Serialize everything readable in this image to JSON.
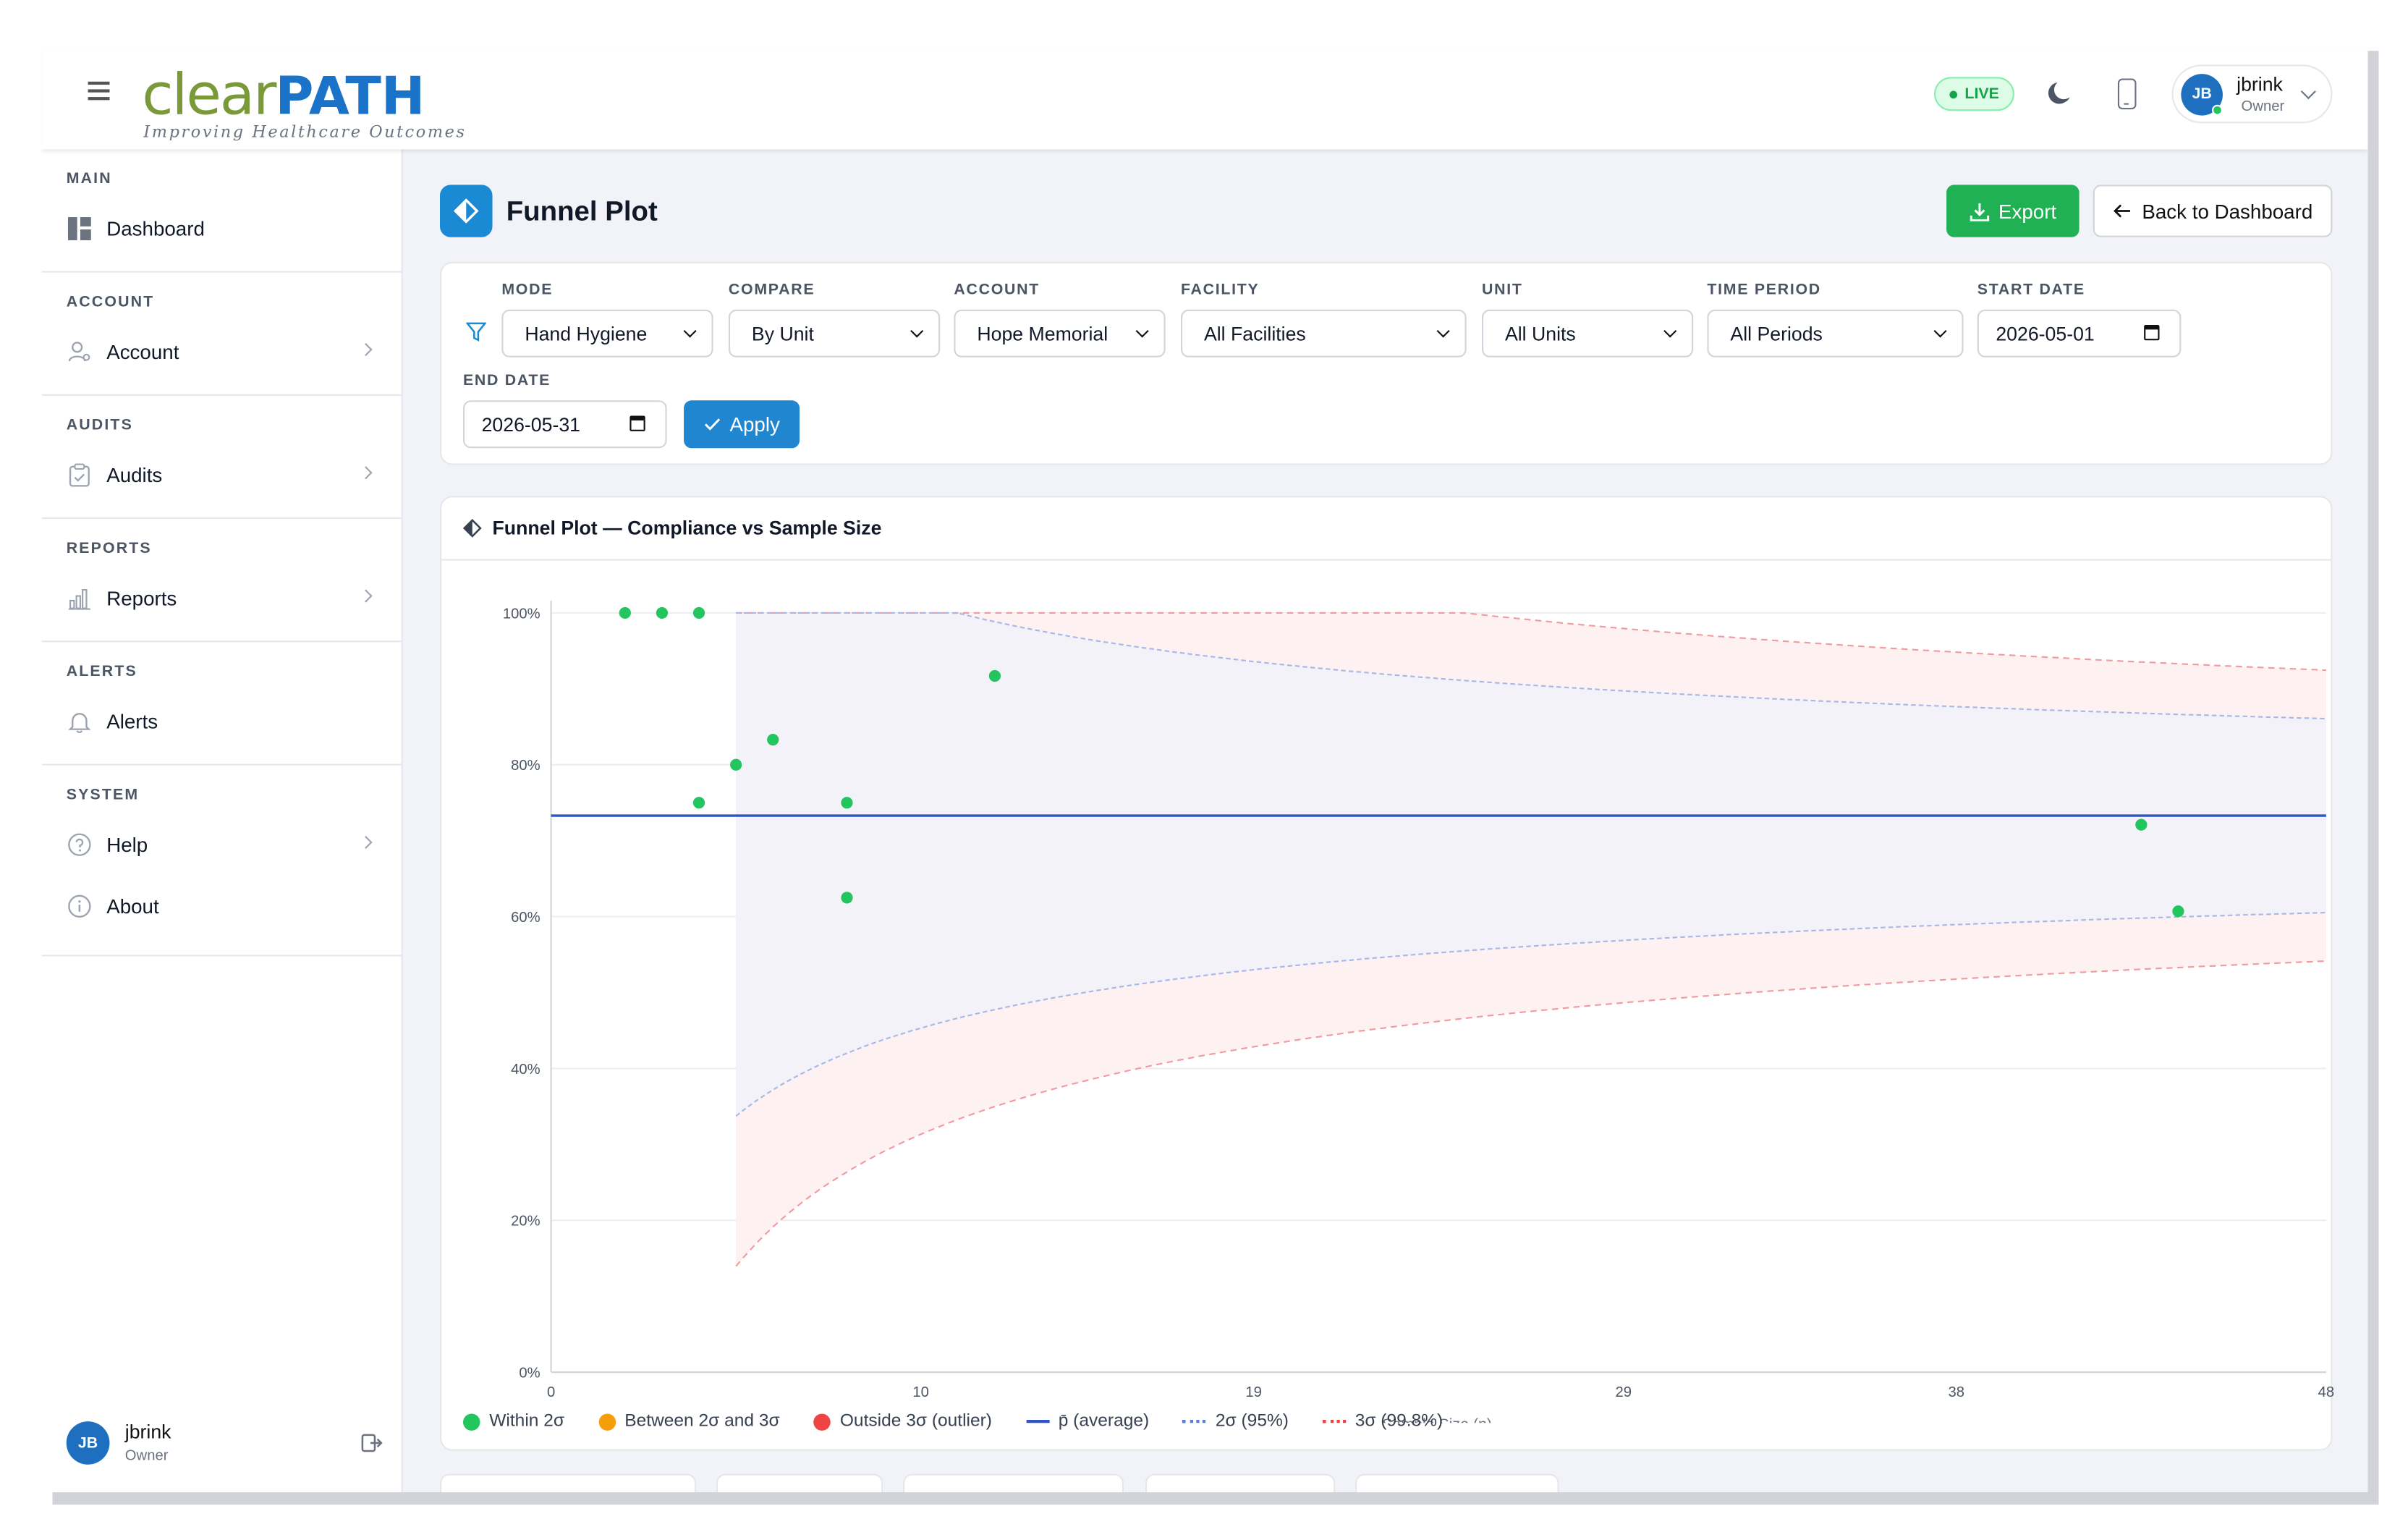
{
  "brand": {
    "logo_clear": "clear",
    "logo_path": "PATH",
    "tagline": "Improving Healthcare Outcomes"
  },
  "header": {
    "live_label": "LIVE",
    "user": {
      "initials": "JB",
      "name": "jbrink",
      "role": "Owner"
    }
  },
  "sidebar": {
    "sections": [
      {
        "title": "MAIN",
        "items": [
          {
            "label": "Dashboard",
            "icon": "dashboard-icon",
            "arrow": false
          }
        ]
      },
      {
        "title": "ACCOUNT",
        "items": [
          {
            "label": "Account",
            "icon": "user-gear-icon",
            "arrow": true
          }
        ]
      },
      {
        "title": "AUDITS",
        "items": [
          {
            "label": "Audits",
            "icon": "clipboard-icon",
            "arrow": true
          }
        ]
      },
      {
        "title": "REPORTS",
        "items": [
          {
            "label": "Reports",
            "icon": "bar-chart-icon",
            "arrow": true
          }
        ]
      },
      {
        "title": "ALERTS",
        "items": [
          {
            "label": "Alerts",
            "icon": "bell-icon",
            "arrow": false
          }
        ]
      },
      {
        "title": "SYSTEM",
        "items": [
          {
            "label": "Help",
            "icon": "question-icon",
            "arrow": true
          },
          {
            "label": "About",
            "icon": "info-icon",
            "arrow": false
          }
        ]
      }
    ],
    "user": {
      "initials": "JB",
      "name": "jbrink",
      "role": "Owner"
    }
  },
  "page": {
    "title": "Funnel Plot",
    "export_label": "Export",
    "back_label": "Back to Dashboard"
  },
  "filters": {
    "mode": {
      "label": "MODE",
      "value": "Hand Hygiene"
    },
    "compare": {
      "label": "COMPARE",
      "value": "By Unit"
    },
    "account": {
      "label": "ACCOUNT",
      "value": "Hope Memorial"
    },
    "facility": {
      "label": "FACILITY",
      "value": "All Facilities"
    },
    "unit": {
      "label": "UNIT",
      "value": "All Units"
    },
    "time_period": {
      "label": "TIME PERIOD",
      "value": "All Periods"
    },
    "start_date": {
      "label": "START DATE",
      "value": "2026-05-01"
    },
    "end_date": {
      "label": "END DATE",
      "value": "2026-05-31"
    },
    "apply_label": "Apply"
  },
  "chart_card": {
    "title": "Funnel Plot — Compliance vs Sample Size"
  },
  "chart_data": {
    "type": "scatter",
    "title": "Funnel Plot — Compliance vs Sample Size",
    "xlabel": "Sample Size (n)",
    "ylabel": "",
    "xlim": [
      0,
      48
    ],
    "ylim": [
      0,
      100
    ],
    "x_ticks": [
      0,
      10,
      19,
      29,
      38,
      48
    ],
    "y_ticks": [
      "0%",
      "20%",
      "40%",
      "60%",
      "80%",
      "100%"
    ],
    "y_tick_values": [
      0,
      20,
      40,
      60,
      80,
      100
    ],
    "average": 73.3,
    "limits_start_n": 5,
    "points": [
      {
        "x": 2,
        "y": 100
      },
      {
        "x": 3,
        "y": 100
      },
      {
        "x": 4,
        "y": 100
      },
      {
        "x": 4,
        "y": 75
      },
      {
        "x": 5,
        "y": 80
      },
      {
        "x": 6,
        "y": 83.3
      },
      {
        "x": 8,
        "y": 75
      },
      {
        "x": 8,
        "y": 62.5
      },
      {
        "x": 12,
        "y": 91.7
      },
      {
        "x": 43,
        "y": 72.1
      },
      {
        "x": 44,
        "y": 60.7
      }
    ],
    "legend": [
      {
        "label": "Within 2σ",
        "kind": "dot",
        "color": "#22c55e"
      },
      {
        "label": "Between 2σ and 3σ",
        "kind": "dot",
        "color": "#f59e0b"
      },
      {
        "label": "Outside 3σ (outlier)",
        "kind": "dot",
        "color": "#ef4444"
      },
      {
        "label": "p̄ (average)",
        "kind": "line",
        "color": "#2f55c4"
      },
      {
        "label": "2σ (95%)",
        "kind": "dash",
        "color": "#5b7fd6"
      },
      {
        "label": "3σ (99.8%)",
        "kind": "dash",
        "color": "#ef4444"
      }
    ],
    "grid": true
  },
  "colors": {
    "accent": "#1a8ad4",
    "export_green": "#1fb154",
    "point_green": "#22c55e",
    "avg_line": "#2f55c4"
  }
}
